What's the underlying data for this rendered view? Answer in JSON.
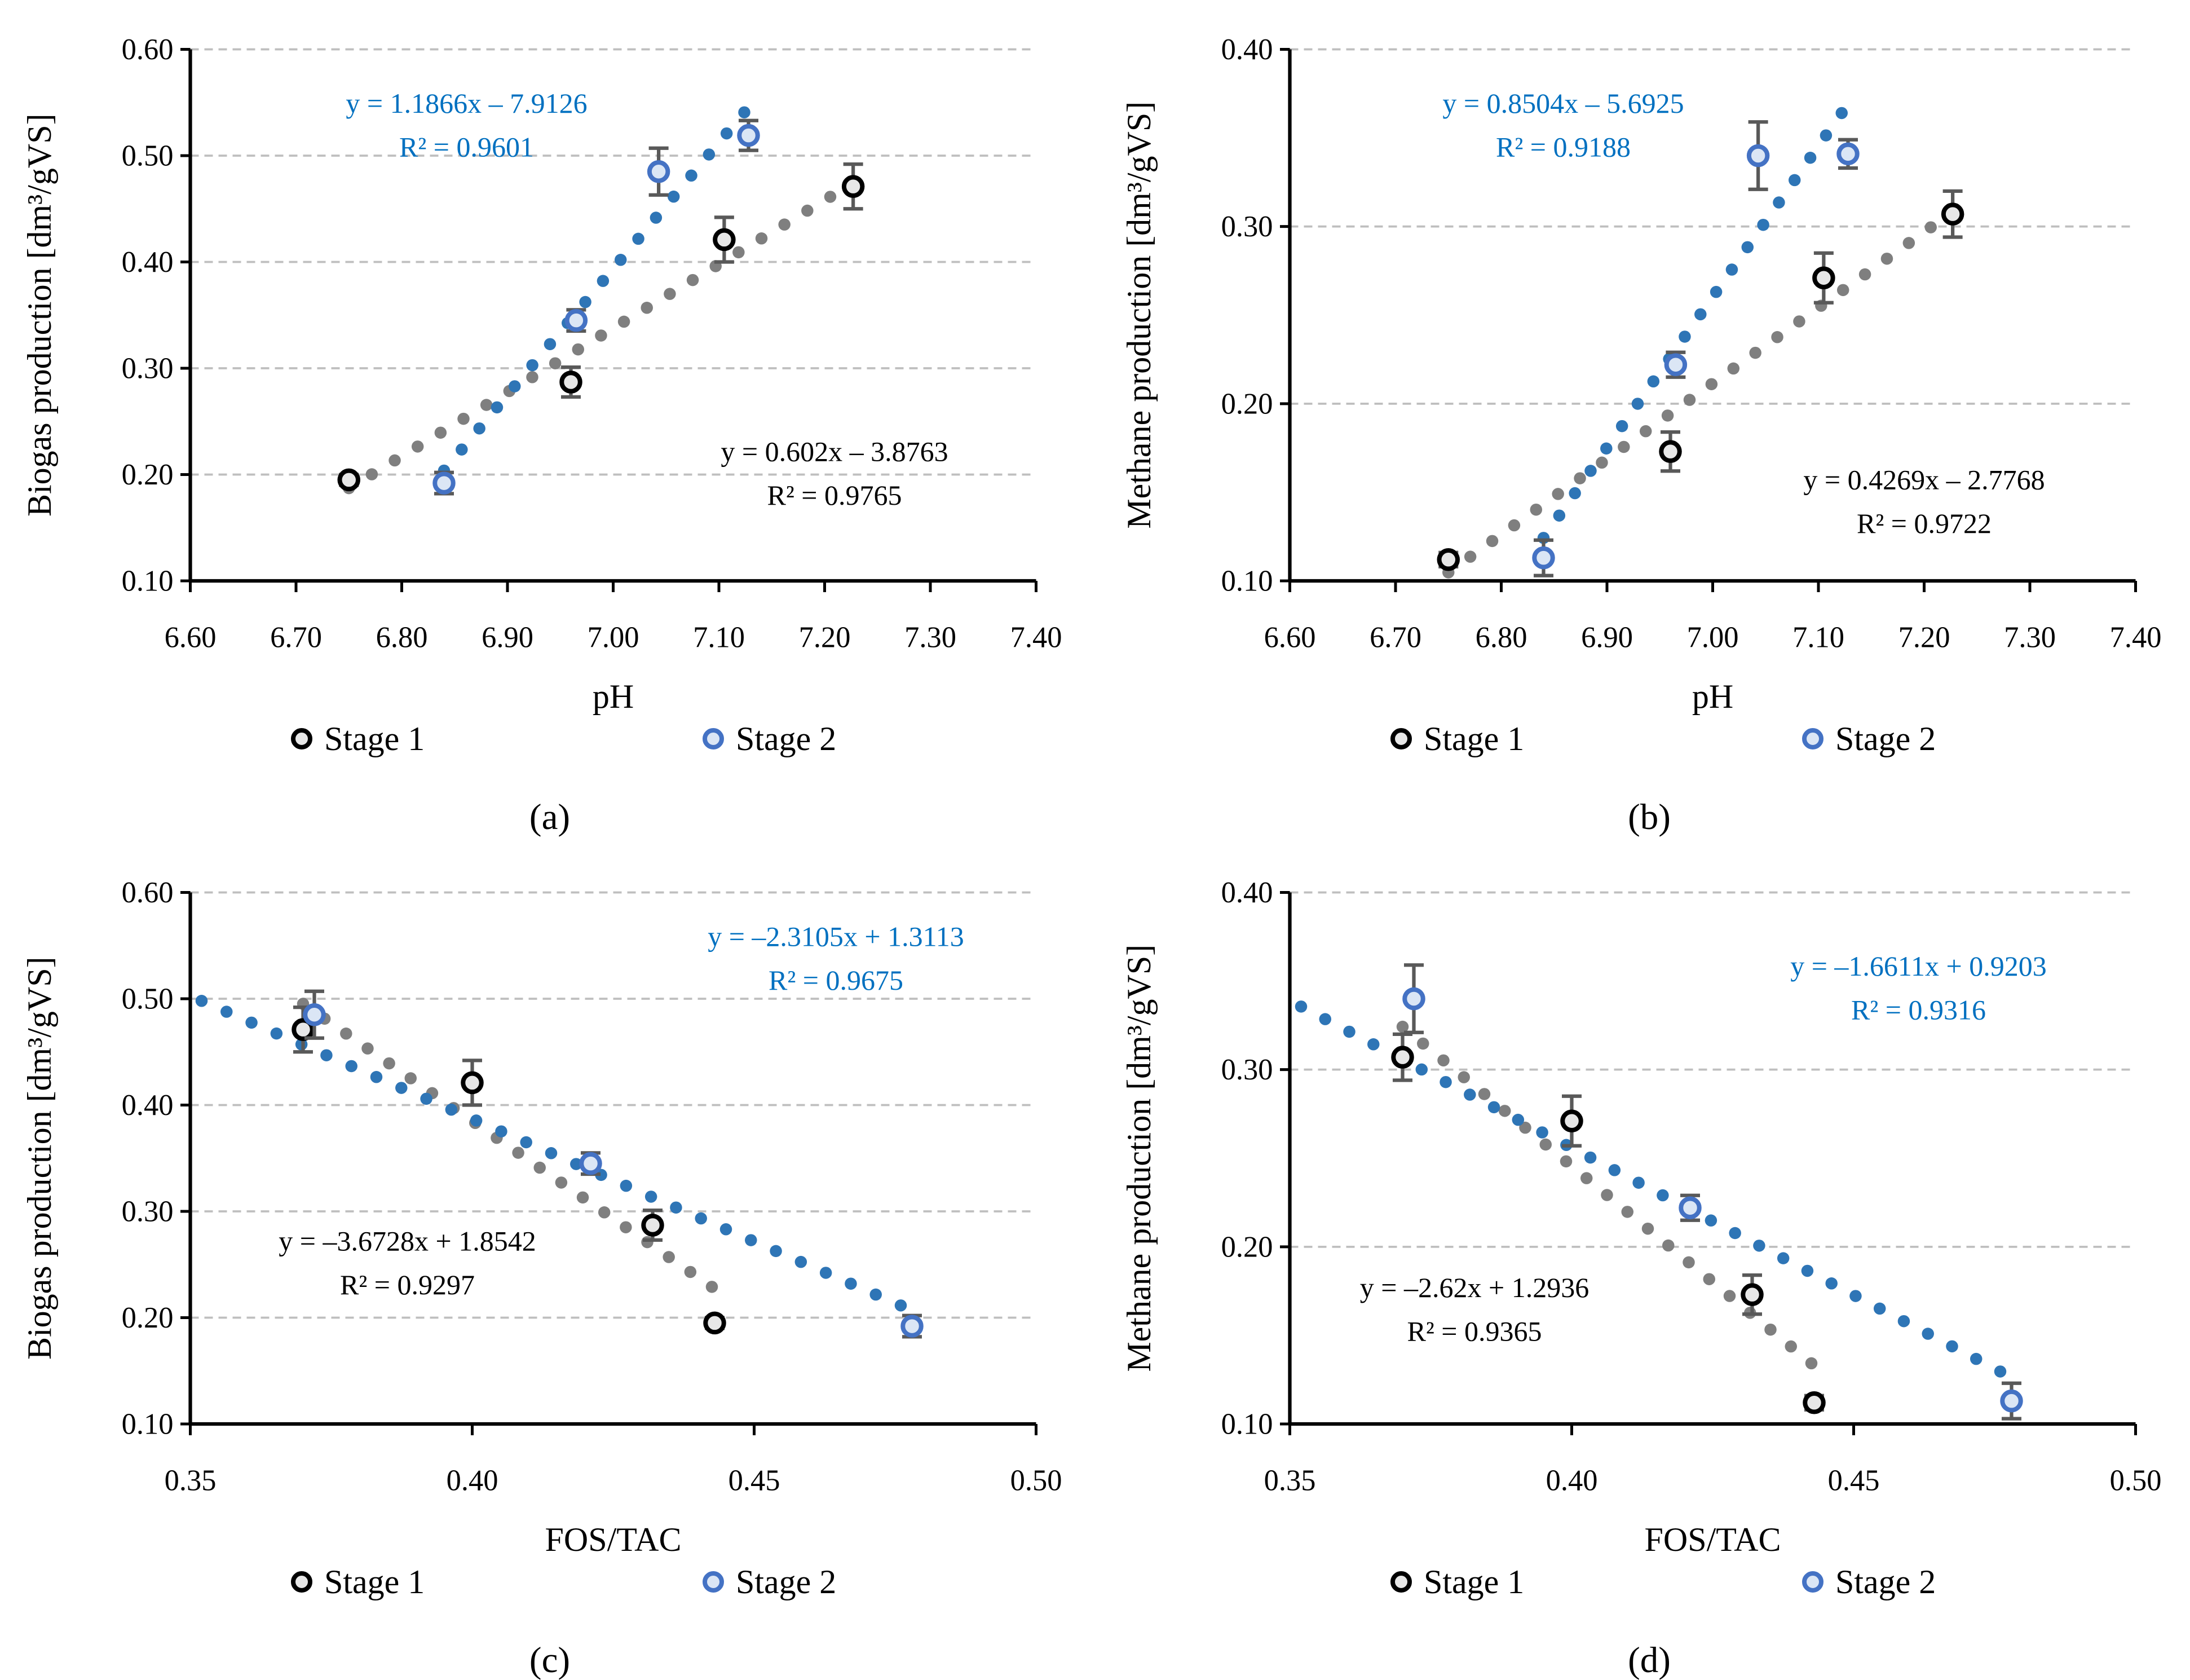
{
  "colors": {
    "stage1_marker": "#000000",
    "stage1_fill": "#e7e7e7",
    "stage2_marker": "#4472C4",
    "stage2_fill": "#dbe6f5",
    "stage1_trend": "#7f7f7f",
    "stage2_trend": "#2E75B6",
    "error_bar": "#595959",
    "grid": "#bfbfbf",
    "eq_stage2": "#0070C0",
    "eq_stage1": "#000000"
  },
  "chart_data": [
    {
      "type": "scatter",
      "caption": "(a)",
      "xlabel": "pH",
      "ylabel": "Biogas production [dm³/gVS]",
      "xlim": [
        6.6,
        7.4
      ],
      "ylim": [
        0.1,
        0.6
      ],
      "xticks": [
        "6.60",
        "6.70",
        "6.80",
        "6.90",
        "7.00",
        "7.10",
        "7.20",
        "7.30",
        "7.40"
      ],
      "yticks": [
        "0.10",
        "0.20",
        "0.30",
        "0.40",
        "0.50",
        "0.60"
      ],
      "grid": "horizontal dashed",
      "legend": "bottom",
      "series": [
        {
          "name": "Stage 1",
          "x": [
            6.75,
            6.96,
            7.105,
            7.227
          ],
          "y": [
            0.195,
            0.287,
            0.421,
            0.471
          ],
          "err": [
            0.005,
            0.014,
            0.021,
            0.021
          ],
          "trend": {
            "slope": 0.602,
            "intercept": -3.8763,
            "range": [
              6.75,
              7.227
            ],
            "equation": "y = 0.602x – 3.8763",
            "r2": "R² = 0.9765"
          }
        },
        {
          "name": "Stage 2",
          "x": [
            6.84,
            6.965,
            7.043,
            7.128
          ],
          "y": [
            0.192,
            0.345,
            0.485,
            0.519
          ],
          "err": [
            0.01,
            0.01,
            0.022,
            0.014
          ],
          "trend": {
            "slope": 1.1866,
            "intercept": -7.9126,
            "range": [
              6.84,
              7.124
            ],
            "equation": "y = 1.1866x – 7.9126",
            "r2": "R² = 0.9601"
          }
        }
      ]
    },
    {
      "type": "scatter",
      "caption": "(b)",
      "xlabel": "pH",
      "ylabel": "Methane production [dm³/gVS]",
      "xlim": [
        6.6,
        7.4
      ],
      "ylim": [
        0.1,
        0.4
      ],
      "xticks": [
        "6.60",
        "6.70",
        "6.80",
        "6.90",
        "7.00",
        "7.10",
        "7.20",
        "7.30",
        "7.40"
      ],
      "yticks": [
        "0.10",
        "0.20",
        "0.30",
        "0.40"
      ],
      "grid": "horizontal dashed",
      "legend": "bottom",
      "series": [
        {
          "name": "Stage 1",
          "x": [
            6.75,
            6.96,
            7.105,
            7.227
          ],
          "y": [
            0.112,
            0.173,
            0.271,
            0.307
          ],
          "err": [
            0.004,
            0.011,
            0.014,
            0.013
          ],
          "trend": {
            "slope": 0.4269,
            "intercept": -2.7768,
            "range": [
              6.75,
              7.227
            ],
            "equation": "y = 0.4269x – 2.7768",
            "r2": "R² = 0.9722"
          }
        },
        {
          "name": "Stage 2",
          "x": [
            6.84,
            6.965,
            7.043,
            7.128
          ],
          "y": [
            0.113,
            0.222,
            0.34,
            0.341
          ],
          "err": [
            0.01,
            0.007,
            0.019,
            0.008
          ],
          "trend": {
            "slope": 0.8504,
            "intercept": -5.6925,
            "range": [
              6.84,
              7.122
            ],
            "equation": "y = 0.8504x – 5.6925",
            "r2": "R² = 0.9188"
          }
        }
      ]
    },
    {
      "type": "scatter",
      "caption": "(c)",
      "xlabel": "FOS/TAC",
      "ylabel": "Biogas production [dm³/gVS]",
      "xlim": [
        0.35,
        0.5
      ],
      "ylim": [
        0.1,
        0.6
      ],
      "xticks": [
        "0.35",
        "0.40",
        "0.45",
        "0.50"
      ],
      "yticks": [
        "0.10",
        "0.20",
        "0.30",
        "0.40",
        "0.50",
        "0.60"
      ],
      "grid": "horizontal dashed",
      "legend": "bottom",
      "series": [
        {
          "name": "Stage 1",
          "x": [
            0.37,
            0.4,
            0.432,
            0.443
          ],
          "y": [
            0.471,
            0.421,
            0.287,
            0.195
          ],
          "err": [
            0.021,
            0.021,
            0.014,
            0.005
          ],
          "trend": {
            "slope": -3.6728,
            "intercept": 1.8542,
            "range": [
              0.37,
              0.4425
            ],
            "equation": "y = –3.6728x + 1.8542",
            "r2": "R² = 0.9297"
          }
        },
        {
          "name": "Stage 2",
          "x": [
            0.372,
            0.421,
            0.478
          ],
          "y": [
            0.485,
            0.345,
            0.192
          ],
          "err": [
            0.022,
            0.01,
            0.01
          ],
          "trend": {
            "slope": -2.3105,
            "intercept": 1.3113,
            "range": [
              0.352,
              0.476
            ],
            "equation": "y = –2.3105x + 1.3113",
            "r2": "R² = 0.9675"
          }
        }
      ]
    },
    {
      "type": "scatter",
      "caption": "(d)",
      "xlabel": "FOS/TAC",
      "ylabel": "Methane production [dm³/gVS]",
      "xlim": [
        0.35,
        0.5
      ],
      "ylim": [
        0.1,
        0.4
      ],
      "xticks": [
        "0.35",
        "0.40",
        "0.45",
        "0.50"
      ],
      "yticks": [
        "0.10",
        "0.20",
        "0.30",
        "0.40"
      ],
      "grid": "horizontal dashed",
      "legend": "bottom",
      "series": [
        {
          "name": "Stage 1",
          "x": [
            0.37,
            0.4,
            0.432,
            0.443
          ],
          "y": [
            0.307,
            0.271,
            0.173,
            0.112
          ],
          "err": [
            0.013,
            0.014,
            0.011,
            0.004
          ],
          "trend": {
            "slope": -2.62,
            "intercept": 1.2936,
            "range": [
              0.37,
              0.4425
            ],
            "equation": "y = –2.62x + 1.2936",
            "r2": "R² = 0.9365"
          }
        },
        {
          "name": "Stage 2",
          "x": [
            0.372,
            0.421,
            0.478
          ],
          "y": [
            0.34,
            0.222,
            0.113
          ],
          "err": [
            0.019,
            0.007,
            0.01
          ],
          "trend": {
            "slope": -1.6611,
            "intercept": 0.9203,
            "range": [
              0.352,
              0.476
            ],
            "equation": "y = –1.6611x + 0.9203",
            "r2": "R² = 0.9316"
          }
        }
      ]
    }
  ]
}
